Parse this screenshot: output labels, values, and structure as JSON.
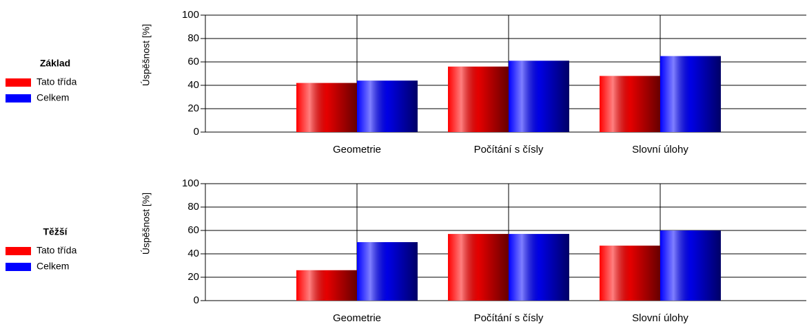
{
  "chart_data": [
    {
      "type": "bar",
      "legend_title": "Základ",
      "y_label": "Úspěšnost [%]",
      "categories": [
        "Geometrie",
        "Počítání s čísly",
        "Slovní úlohy"
      ],
      "series": [
        {
          "name": "Tato třída",
          "color": "#ff0000",
          "values": [
            42,
            56,
            48
          ]
        },
        {
          "name": "Celkem",
          "color": "#0000ff",
          "values": [
            44,
            61,
            65
          ]
        }
      ],
      "ylim": [
        0,
        100
      ],
      "yticks": [
        0,
        20,
        40,
        60,
        80,
        100
      ],
      "grid": true
    },
    {
      "type": "bar",
      "legend_title": "Těžší",
      "y_label": "Úspěšnost [%]",
      "categories": [
        "Geometrie",
        "Počítání s čísly",
        "Slovní úlohy"
      ],
      "series": [
        {
          "name": "Tato třída",
          "color": "#ff0000",
          "values": [
            26,
            57,
            47
          ]
        },
        {
          "name": "Celkem",
          "color": "#0000ff",
          "values": [
            50,
            57,
            60
          ]
        }
      ],
      "ylim": [
        0,
        100
      ],
      "yticks": [
        0,
        20,
        40,
        60,
        80,
        100
      ],
      "grid": true
    }
  ]
}
